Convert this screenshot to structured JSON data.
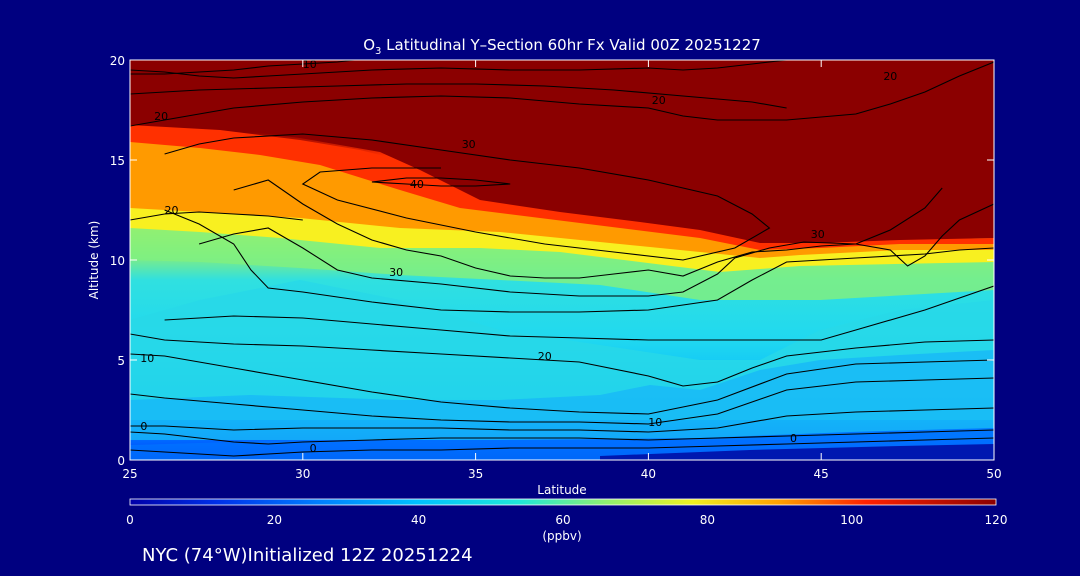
{
  "chart_data": {
    "type": "heatmap",
    "title_prefix": "O",
    "title_sub": "3",
    "title_rest": " Latitudinal Y–Section 60hr  Fx Valid 00Z 20251227",
    "xlabel": "Latitude",
    "ylabel": "Altitude (km)",
    "xlim": [
      25,
      50
    ],
    "ylim": [
      0,
      20
    ],
    "x_ticks": [
      25,
      30,
      35,
      40,
      45,
      50
    ],
    "y_ticks": [
      0,
      5,
      10,
      15,
      20
    ],
    "colorbar": {
      "label": "(ppbv)",
      "range": [
        0,
        120
      ],
      "ticks": [
        0,
        20,
        40,
        60,
        80,
        100,
        120
      ]
    },
    "contours": [
      {
        "label": "0",
        "points": [
          [
            25,
            0.5
          ],
          [
            26,
            0.4
          ],
          [
            27,
            0.3
          ],
          [
            28,
            0.2
          ],
          [
            29,
            0.3
          ],
          [
            30,
            0.4
          ],
          [
            32,
            0.5
          ],
          [
            34,
            0.5
          ],
          [
            36,
            0.6
          ],
          [
            38,
            0.6
          ],
          [
            40,
            0.6
          ],
          [
            42,
            0.7
          ],
          [
            44,
            0.8
          ],
          [
            46,
            0.9
          ],
          [
            48,
            1.0
          ],
          [
            50,
            1.1
          ]
        ]
      },
      {
        "label": "0",
        "points": [
          [
            25,
            1.4
          ],
          [
            26,
            1.3
          ],
          [
            27,
            1.1
          ],
          [
            28,
            0.9
          ],
          [
            29,
            0.8
          ],
          [
            30,
            0.9
          ],
          [
            32,
            1.0
          ],
          [
            34,
            1.1
          ],
          [
            36,
            1.1
          ],
          [
            38,
            1.1
          ],
          [
            40,
            1.0
          ],
          [
            42,
            1.1
          ],
          [
            44,
            1.2
          ],
          [
            46,
            1.3
          ],
          [
            48,
            1.4
          ],
          [
            50,
            1.5
          ]
        ]
      },
      {
        "label": "0",
        "points": [
          [
            25,
            1.7
          ],
          [
            26,
            1.7
          ],
          [
            27,
            1.6
          ],
          [
            28,
            1.5
          ],
          [
            30,
            1.6
          ],
          [
            32,
            1.6
          ],
          [
            34,
            1.6
          ],
          [
            36,
            1.5
          ],
          [
            38,
            1.5
          ],
          [
            40,
            1.4
          ],
          [
            42,
            1.6
          ],
          [
            44,
            2.2
          ],
          [
            46,
            2.4
          ],
          [
            48,
            2.5
          ],
          [
            50,
            2.6
          ]
        ]
      },
      {
        "label": "10",
        "points": [
          [
            25,
            3.3
          ],
          [
            26,
            3.1
          ],
          [
            28,
            2.8
          ],
          [
            30,
            2.5
          ],
          [
            32,
            2.2
          ],
          [
            34,
            2.0
          ],
          [
            36,
            1.9
          ],
          [
            38,
            1.9
          ],
          [
            40,
            1.8
          ],
          [
            42,
            2.3
          ],
          [
            44,
            3.5
          ],
          [
            46,
            3.9
          ],
          [
            48,
            4.0
          ],
          [
            50,
            4.1
          ]
        ]
      },
      {
        "label": "10",
        "points": [
          [
            25,
            5.3
          ],
          [
            26,
            5.2
          ],
          [
            28,
            4.6
          ],
          [
            30,
            4.0
          ],
          [
            32,
            3.4
          ],
          [
            34,
            2.9
          ],
          [
            36,
            2.6
          ],
          [
            38,
            2.4
          ],
          [
            40,
            2.3
          ],
          [
            42,
            3.0
          ],
          [
            44,
            4.3
          ],
          [
            46,
            4.8
          ],
          [
            48,
            4.9
          ],
          [
            50,
            5.0
          ]
        ]
      },
      {
        "label": "20",
        "points": [
          [
            25,
            6.3
          ],
          [
            26,
            6.0
          ],
          [
            28,
            5.8
          ],
          [
            30,
            5.7
          ],
          [
            32,
            5.5
          ],
          [
            34,
            5.3
          ],
          [
            36,
            5.1
          ],
          [
            38,
            4.9
          ],
          [
            40,
            4.2
          ],
          [
            41,
            3.7
          ],
          [
            42,
            3.9
          ],
          [
            43,
            4.6
          ],
          [
            44,
            5.2
          ],
          [
            46,
            5.6
          ],
          [
            48,
            5.9
          ],
          [
            50,
            6.0
          ]
        ]
      },
      {
        "label": "20",
        "points": [
          [
            26,
            7.0
          ],
          [
            28,
            7.2
          ],
          [
            30,
            7.1
          ],
          [
            32,
            6.8
          ],
          [
            34,
            6.5
          ],
          [
            36,
            6.2
          ],
          [
            38,
            6.1
          ],
          [
            40,
            6.0
          ],
          [
            42,
            6.0
          ],
          [
            44,
            6.0
          ],
          [
            45,
            6.0
          ],
          [
            46,
            6.5
          ],
          [
            48,
            7.5
          ],
          [
            50,
            8.7
          ]
        ]
      },
      {
        "label": "20",
        "points": [
          [
            26,
            12.5
          ],
          [
            27,
            11.8
          ],
          [
            28,
            10.8
          ],
          [
            28.5,
            9.5
          ],
          [
            29,
            8.6
          ],
          [
            30,
            8.4
          ],
          [
            32,
            7.9
          ],
          [
            34,
            7.5
          ],
          [
            36,
            7.4
          ],
          [
            38,
            7.4
          ],
          [
            40,
            7.5
          ],
          [
            42,
            8.0
          ],
          [
            43,
            9.0
          ],
          [
            44,
            9.9
          ],
          [
            46,
            10.1
          ],
          [
            48,
            10.3
          ],
          [
            49,
            10.5
          ],
          [
            50,
            10.6
          ]
        ]
      },
      {
        "label": "30",
        "points": [
          [
            27,
            10.8
          ],
          [
            28,
            11.3
          ],
          [
            29,
            11.6
          ],
          [
            30,
            10.6
          ],
          [
            31,
            9.5
          ],
          [
            32,
            9.1
          ],
          [
            34,
            8.8
          ],
          [
            36,
            8.4
          ],
          [
            38,
            8.2
          ],
          [
            40,
            8.2
          ],
          [
            41,
            8.4
          ],
          [
            42,
            9.3
          ],
          [
            42.5,
            10.1
          ],
          [
            43.5,
            10.6
          ],
          [
            44.5,
            10.9
          ],
          [
            46,
            10.8
          ],
          [
            47,
            10.5
          ],
          [
            47.5,
            9.7
          ],
          [
            48,
            10.2
          ],
          [
            48.5,
            11.2
          ],
          [
            49,
            12.0
          ],
          [
            50,
            12.8
          ]
        ]
      },
      {
        "label": "30",
        "points": [
          [
            28,
            13.5
          ],
          [
            29,
            14.0
          ],
          [
            30,
            12.8
          ],
          [
            31,
            11.8
          ],
          [
            32,
            11.0
          ],
          [
            33,
            10.5
          ],
          [
            34,
            10.2
          ],
          [
            35,
            9.6
          ],
          [
            36,
            9.2
          ],
          [
            37,
            9.1
          ],
          [
            38,
            9.1
          ],
          [
            39,
            9.3
          ],
          [
            40,
            9.5
          ],
          [
            41,
            9.2
          ],
          [
            42,
            9.9
          ],
          [
            43,
            10.4
          ],
          [
            44,
            10.5
          ],
          [
            45,
            10.7
          ],
          [
            46,
            10.8
          ],
          [
            47,
            11.5
          ],
          [
            48,
            12.6
          ],
          [
            48.5,
            13.6
          ]
        ]
      },
      {
        "label": "30",
        "points": [
          [
            26,
            15.3
          ],
          [
            27,
            15.8
          ],
          [
            28,
            16.1
          ],
          [
            30,
            16.3
          ],
          [
            32,
            16.0
          ],
          [
            34,
            15.5
          ],
          [
            36,
            15.0
          ],
          [
            38,
            14.6
          ],
          [
            40,
            14.0
          ],
          [
            42,
            13.2
          ],
          [
            43,
            12.3
          ],
          [
            43.5,
            11.6
          ],
          [
            42.5,
            10.6
          ],
          [
            41,
            10.0
          ],
          [
            39,
            10.4
          ],
          [
            37,
            10.8
          ],
          [
            35,
            11.4
          ],
          [
            33,
            12.1
          ],
          [
            31,
            13.0
          ],
          [
            30,
            13.8
          ],
          [
            30.5,
            14.4
          ],
          [
            32,
            14.6
          ],
          [
            34,
            14.6
          ]
        ]
      },
      {
        "label": "40",
        "points": [
          [
            32,
            13.9
          ],
          [
            33,
            13.8
          ],
          [
            34,
            13.7
          ],
          [
            35,
            13.7
          ],
          [
            36,
            13.8
          ],
          [
            35,
            14.0
          ],
          [
            34,
            14.1
          ],
          [
            33,
            14.1
          ],
          [
            32,
            13.9
          ]
        ]
      },
      {
        "label": "20",
        "points": [
          [
            25,
            16.7
          ],
          [
            26,
            17.0
          ],
          [
            27,
            17.3
          ],
          [
            28,
            17.6
          ],
          [
            30,
            17.9
          ],
          [
            32,
            18.1
          ],
          [
            34,
            18.2
          ],
          [
            36,
            18.1
          ],
          [
            38,
            17.8
          ],
          [
            40,
            17.6
          ],
          [
            41,
            17.2
          ],
          [
            42,
            17.0
          ],
          [
            44,
            17.0
          ],
          [
            46,
            17.3
          ],
          [
            47,
            17.8
          ],
          [
            48,
            18.4
          ],
          [
            49,
            19.2
          ],
          [
            50,
            19.9
          ]
        ]
      },
      {
        "label": "10",
        "points": [
          [
            25,
            19.5
          ],
          [
            26,
            19.4
          ],
          [
            27,
            19.2
          ],
          [
            28,
            19.1
          ],
          [
            29,
            19.2
          ],
          [
            30,
            19.3
          ],
          [
            32,
            19.5
          ],
          [
            34,
            19.6
          ],
          [
            36,
            19.5
          ],
          [
            38,
            19.5
          ],
          [
            40,
            19.6
          ],
          [
            41,
            19.5
          ],
          [
            42,
            19.6
          ],
          [
            43,
            19.8
          ],
          [
            44,
            20
          ]
        ]
      },
      {
        "label": "10",
        "points": [
          [
            25,
            18.3
          ],
          [
            27,
            18.5
          ],
          [
            29,
            18.6
          ],
          [
            31,
            18.7
          ],
          [
            33,
            18.8
          ],
          [
            35,
            18.8
          ],
          [
            37,
            18.7
          ],
          [
            39,
            18.5
          ],
          [
            41,
            18.2
          ],
          [
            43,
            17.9
          ],
          [
            44,
            17.6
          ]
        ]
      },
      {
        "label": "10",
        "points": [
          [
            25,
            19.3
          ],
          [
            26,
            19.3
          ],
          [
            27,
            19.4
          ],
          [
            28,
            19.5
          ],
          [
            29,
            19.7
          ],
          [
            30,
            19.8
          ],
          [
            31,
            19.9
          ],
          [
            31.5,
            20
          ]
        ]
      },
      {
        "label": "20",
        "points": [
          [
            25,
            12.0
          ],
          [
            26,
            12.3
          ],
          [
            27,
            12.4
          ],
          [
            28,
            12.3
          ],
          [
            29,
            12.2
          ],
          [
            30,
            12.0
          ]
        ]
      }
    ],
    "contour_label_positions": [
      {
        "text": "10",
        "x": 30.2,
        "y": 19.8
      },
      {
        "text": "20",
        "x": 25.9,
        "y": 17.2
      },
      {
        "text": "30",
        "x": 34.8,
        "y": 15.8
      },
      {
        "text": "40",
        "x": 33.3,
        "y": 13.8
      },
      {
        "text": "20",
        "x": 26.2,
        "y": 12.5
      },
      {
        "text": "30",
        "x": 32.7,
        "y": 9.4
      },
      {
        "text": "30",
        "x": 44.9,
        "y": 11.3
      },
      {
        "text": "20",
        "x": 40.3,
        "y": 18.0
      },
      {
        "text": "20",
        "x": 47.0,
        "y": 19.2
      },
      {
        "text": "20",
        "x": 37.0,
        "y": 5.2
      },
      {
        "text": "10",
        "x": 25.5,
        "y": 5.1
      },
      {
        "text": "10",
        "x": 40.2,
        "y": 1.9
      },
      {
        "text": "0",
        "x": 25.4,
        "y": 1.7
      },
      {
        "text": "0",
        "x": 30.3,
        "y": 0.6
      },
      {
        "text": "0",
        "x": 44.2,
        "y": 1.1
      }
    ]
  },
  "footer": {
    "station_text": "NYC (74°W)Initialized 12Z 20251224"
  }
}
